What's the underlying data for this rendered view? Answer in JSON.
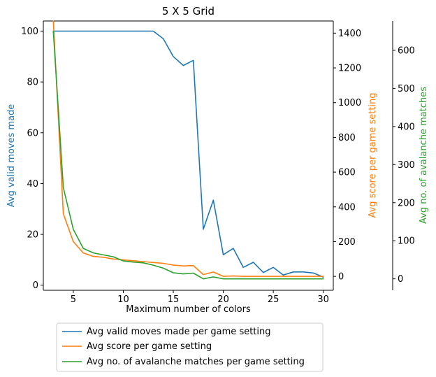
{
  "chart_data": {
    "type": "line",
    "title": "5 X 5 Grid",
    "xlabel": "Maximum number of colors",
    "xlim": [
      2,
      31
    ],
    "xticks": [
      5,
      10,
      15,
      20,
      25,
      30
    ],
    "x": [
      3,
      4,
      5,
      6,
      7,
      8,
      9,
      10,
      11,
      12,
      13,
      14,
      15,
      16,
      17,
      18,
      19,
      20,
      21,
      22,
      23,
      24,
      25,
      26,
      27,
      28,
      29,
      30
    ],
    "legend_position": "bottom",
    "axes": {
      "left": {
        "label": "Avg valid moves made",
        "color": "#1f77b4",
        "ylim": [
          -2,
          104
        ],
        "ticks": [
          0,
          20,
          40,
          60,
          80,
          100
        ]
      },
      "right1": {
        "label": "Avg score per game setting",
        "color": "#ff7f0e",
        "ylim": [
          -80,
          1470
        ],
        "ticks": [
          0,
          200,
          400,
          600,
          800,
          1000,
          1200,
          1400
        ]
      },
      "right2": {
        "label": "Avg no. of avalanche matches",
        "color": "#2ca02c",
        "ylim": [
          -30,
          677
        ],
        "ticks": [
          0,
          100,
          200,
          300,
          400,
          500,
          600
        ]
      }
    },
    "series": [
      {
        "name": "Avg valid moves made per game setting",
        "axis": "left",
        "color": "#1f77b4",
        "values": [
          100,
          100,
          100,
          100,
          100,
          100,
          100,
          100,
          100,
          100,
          100,
          97,
          90,
          86.5,
          88.5,
          22,
          33.5,
          12,
          14.5,
          7,
          9,
          5,
          7,
          4,
          5.2,
          5.2,
          4.8,
          3.2
        ]
      },
      {
        "name": "Avg score per game setting",
        "axis": "right1",
        "color": "#ff7f0e",
        "values": [
          1470,
          360,
          200,
          135,
          115,
          110,
          100,
          95,
          90,
          85,
          80,
          75,
          65,
          60,
          62,
          10,
          25,
          0,
          2,
          0,
          0,
          0,
          0,
          0,
          0,
          0,
          0,
          0
        ]
      },
      {
        "name": "Avg no. of avalanche matches per game setting",
        "axis": "right2",
        "color": "#2ca02c",
        "values": [
          650,
          240,
          130,
          80,
          68,
          63,
          58,
          47,
          44,
          42,
          36,
          28,
          16,
          13,
          15,
          0,
          5,
          0,
          0,
          0,
          0,
          0,
          0,
          0,
          0,
          0,
          0,
          0
        ]
      }
    ]
  }
}
